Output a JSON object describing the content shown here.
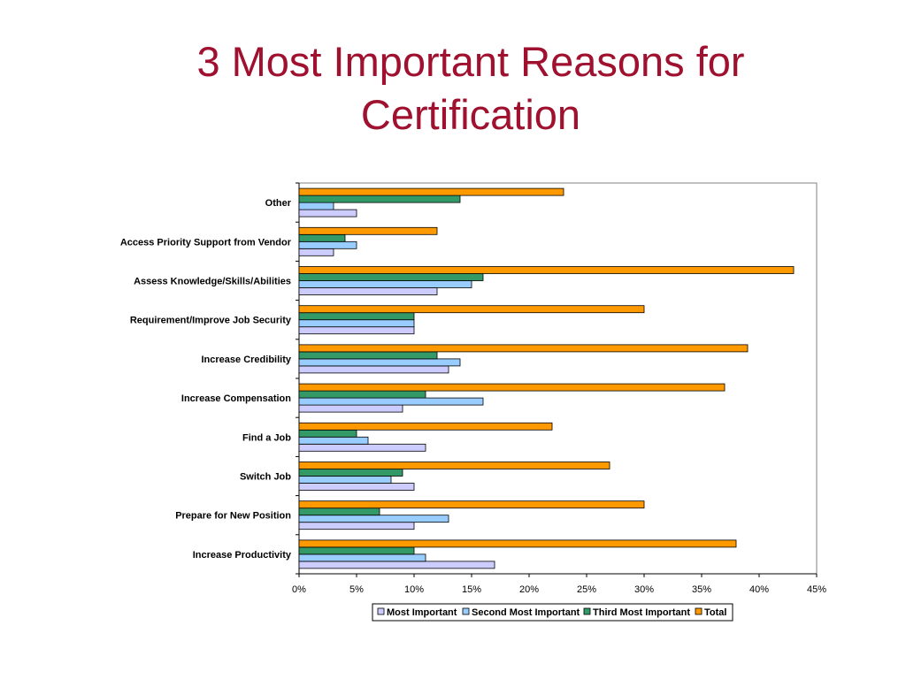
{
  "slide": {
    "title_line1": "3 Most Important Reasons for",
    "title_line2": "Certification"
  },
  "chart_data": {
    "type": "bar",
    "orientation": "horizontal",
    "title": "",
    "xlabel": "",
    "ylabel": "",
    "xlim": [
      0,
      45
    ],
    "x_ticks": [
      "0%",
      "5%",
      "10%",
      "15%",
      "20%",
      "25%",
      "30%",
      "35%",
      "40%",
      "45%"
    ],
    "grid": false,
    "legend_position": "bottom",
    "categories": [
      "Other",
      "Access Priority Support from Vendor",
      "Assess Knowledge/Skills/Abilities",
      "Requirement/Improve Job Security",
      "Increase Credibility",
      "Increase Compensation",
      "Find a Job",
      "Switch Job",
      "Prepare for New Position",
      "Increase Productivity"
    ],
    "series": [
      {
        "name": "Most Important",
        "color": "#ccccff",
        "values": [
          5,
          3,
          12,
          10,
          13,
          9,
          11,
          10,
          10,
          17
        ]
      },
      {
        "name": "Second Most Important",
        "color": "#99ccff",
        "values": [
          3,
          5,
          15,
          10,
          14,
          16,
          6,
          8,
          13,
          11
        ]
      },
      {
        "name": "Third Most Important",
        "color": "#339966",
        "values": [
          14,
          4,
          16,
          10,
          12,
          11,
          5,
          9,
          7,
          10
        ]
      },
      {
        "name": "Total",
        "color": "#ff9900",
        "values": [
          23,
          12,
          43,
          30,
          39,
          37,
          22,
          27,
          30,
          38
        ]
      }
    ]
  }
}
